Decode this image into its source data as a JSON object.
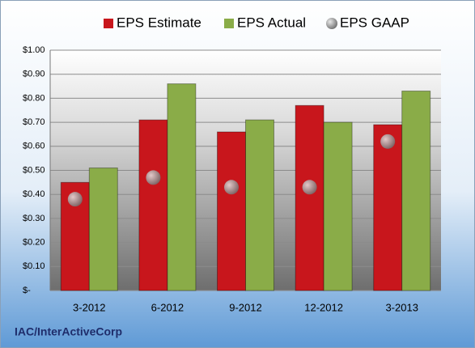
{
  "chart_data": {
    "type": "bar",
    "footer": "IAC/InterActiveCorp",
    "categories": [
      "3-2012",
      "6-2012",
      "9-2012",
      "12-2012",
      "3-2013"
    ],
    "series": [
      {
        "name": "EPS Estimate",
        "type": "bar",
        "color": "#c8161c",
        "values": [
          0.45,
          0.71,
          0.66,
          0.77,
          0.69
        ]
      },
      {
        "name": "EPS Actual",
        "type": "bar",
        "color": "#8aac48",
        "values": [
          0.51,
          0.86,
          0.71,
          0.7,
          0.83
        ]
      },
      {
        "name": "EPS GAAP",
        "type": "scatter",
        "color": "#9a9a9a",
        "values": [
          0.38,
          0.47,
          0.43,
          0.43,
          0.62
        ]
      }
    ],
    "ylim": [
      0,
      1
    ],
    "yticks": [
      {
        "value": 0,
        "label": "$-"
      },
      {
        "value": 0.1,
        "label": "$0.10"
      },
      {
        "value": 0.2,
        "label": "$0.20"
      },
      {
        "value": 0.3,
        "label": "$0.30"
      },
      {
        "value": 0.4,
        "label": "$0.40"
      },
      {
        "value": 0.5,
        "label": "$0.50"
      },
      {
        "value": 0.6,
        "label": "$0.60"
      },
      {
        "value": 0.7,
        "label": "$0.70"
      },
      {
        "value": 0.8,
        "label": "$0.80"
      },
      {
        "value": 0.9,
        "label": "$0.90"
      },
      {
        "value": 1,
        "label": "$1.00"
      }
    ],
    "grid": true,
    "legend": "top"
  }
}
